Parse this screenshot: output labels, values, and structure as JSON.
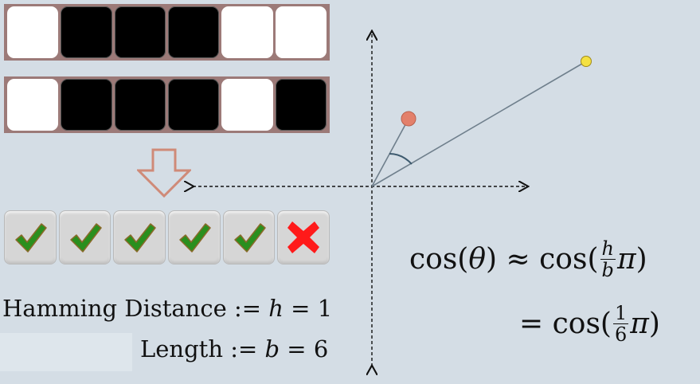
{
  "bit_strings": [
    [
      "white",
      "black",
      "black",
      "black",
      "white",
      "white"
    ],
    [
      "white",
      "black",
      "black",
      "black",
      "white",
      "black"
    ]
  ],
  "comparison": [
    "check",
    "check",
    "check",
    "check",
    "check",
    "cross"
  ],
  "colors": {
    "strip_frame": "#9c7a78",
    "check": "#2a8f1e",
    "cross": "#ff1a1a",
    "vector_short": "#e3806b",
    "vector_long": "#f4e142"
  },
  "labels": {
    "hamming_text": "Hamming Distance :=",
    "hamming_var": "h",
    "hamming_eq": "= 1",
    "length_text": "Length :=",
    "length_var": "b",
    "length_eq": "= 6"
  },
  "formula": {
    "line1_prefix": "cos(",
    "theta": "θ",
    "line1_mid": ") ≈ cos(",
    "frac1_num": "h",
    "frac1_den": "b",
    "pi": "π",
    "close": ")",
    "line2_prefix": "= cos(",
    "frac2_num": "1",
    "frac2_den": "6"
  }
}
